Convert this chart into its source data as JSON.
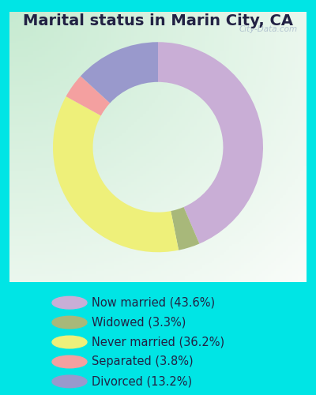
{
  "title": "Marital status in Marin City, CA",
  "slices": [
    {
      "label": "Now married (43.6%)",
      "value": 43.6,
      "color": "#c9aed6"
    },
    {
      "label": "Widowed (3.3%)",
      "value": 3.3,
      "color": "#a8b87a"
    },
    {
      "label": "Never married (36.2%)",
      "value": 36.2,
      "color": "#eef07a"
    },
    {
      "label": "Separated (3.8%)",
      "value": 3.8,
      "color": "#f4a0a0"
    },
    {
      "label": "Divorced (13.2%)",
      "value": 13.2,
      "color": "#9999cc"
    }
  ],
  "bg_outer": "#00e5e5",
  "bg_chart_topleft": "#c8e8d0",
  "bg_chart_center": "#e8f4ec",
  "title_fontsize": 14,
  "legend_fontsize": 10.5,
  "text_color": "#222244",
  "watermark": "City-Data.com",
  "donut_width": 0.38
}
